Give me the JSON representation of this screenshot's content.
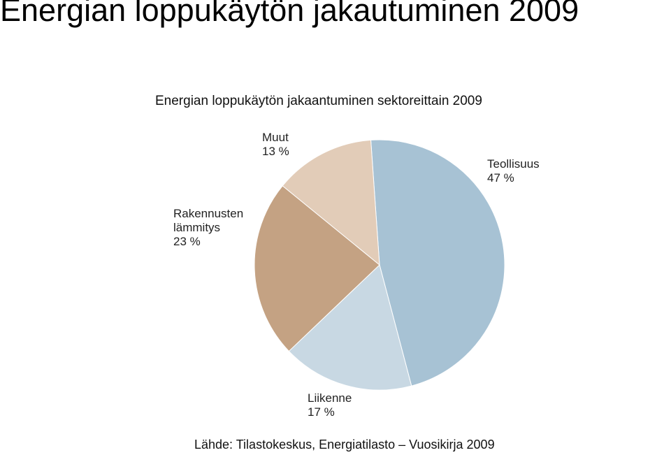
{
  "heading": "Energian loppukäytön jakautuminen 2009",
  "chart_data": {
    "type": "pie",
    "title": "Energian loppukäytön jakaantuminen sektoreittain 2009",
    "categories": [
      "Teollisuus",
      "Liikenne",
      "Rakennusten lämmitys",
      "Muut"
    ],
    "values": [
      47,
      17,
      23,
      13
    ],
    "value_labels": [
      "47 %",
      "17 %",
      "23 %",
      "13 %"
    ],
    "colors": [
      "#a7c2d4",
      "#c8d8e3",
      "#c4a283",
      "#e2ccb8"
    ],
    "source": "Lähde: Tilastokeskus, Energiatilasto – Vuosikirja 2009"
  }
}
